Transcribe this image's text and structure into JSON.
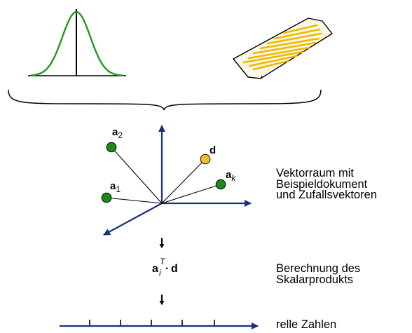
{
  "colors": {
    "gaussian_curve": "#1e9a1e",
    "axis_black": "#000000",
    "arrow_navy": "#1c2f7e",
    "vector_green": "#1a8a1a",
    "document_vector_yellow": "#f2c02a",
    "document_paper": "#fbf7e6",
    "document_lines": "#f0b800"
  },
  "icons": {
    "distribution": "gaussian-curve-icon",
    "document": "document-page-icon"
  },
  "vectors": {
    "a2": {
      "bold": "a",
      "sub": "2"
    },
    "a1": {
      "bold": "a",
      "sub": "1"
    },
    "d": {
      "bold": "d"
    },
    "ak": {
      "bold": "a",
      "sub": "k"
    }
  },
  "flow": {
    "arrow_glyph": "🠗",
    "formula": {
      "base": "a",
      "sup": "T",
      "sub": "i",
      "dot": "·",
      "vec": "d"
    }
  },
  "descriptions": {
    "vector_space": [
      "Vektorraum mit",
      "Beispieldokument",
      "und Zufallsvektoren"
    ],
    "scalar_product": [
      "Berechnung des",
      "Skalarprodukts"
    ],
    "real_numbers": [
      "relle Zahlen"
    ]
  }
}
